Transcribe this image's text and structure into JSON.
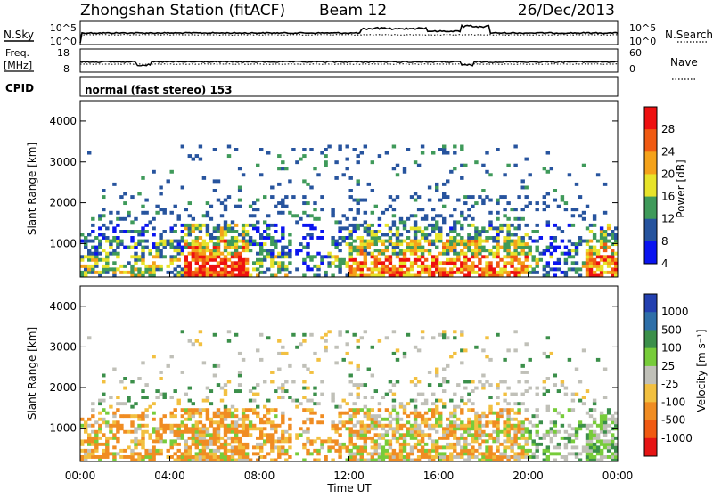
{
  "header": {
    "title": "Zhongshan Station (fitACF)",
    "beam": "Beam 12",
    "date": "26/Dec/2013"
  },
  "strip_panels": {
    "nsky_label": "N.Sky",
    "nsky_ticks": [
      "10^5",
      "10^0"
    ],
    "nsearch_label": "N.Search",
    "nsearch_ticks": [
      "10^5",
      "10^0"
    ],
    "freq_label_1": "Freq.",
    "freq_label_2": "[MHz]",
    "freq_ticks": [
      "18",
      "8"
    ],
    "nave_label": "Nave",
    "nave_ticks": [
      "60",
      "0"
    ],
    "cpid_label": "CPID",
    "cpid_value": "normal (fast stereo) 153"
  },
  "chart_data": [
    {
      "type": "heatmap",
      "panel": "power",
      "ylabel": "Slant Range [km]",
      "xlabel": "",
      "x_range_hours": [
        0,
        24
      ],
      "ylim": [
        180,
        4500
      ],
      "yticks": [
        "1000",
        "2000",
        "3000",
        "4000"
      ],
      "colorbar": {
        "label": "Power [dB]",
        "ticks": [
          "28",
          "24",
          "20",
          "16",
          "12",
          "8",
          "4"
        ],
        "colors": [
          "#ee1010",
          "#f05a12",
          "#f4a21a",
          "#e7e32a",
          "#3f9a5a",
          "#27549e",
          "#0a14f0"
        ]
      },
      "echo_regions": [
        {
          "from_h": 0.2,
          "to_h": 24,
          "range_km": [
            200,
            1500
          ],
          "level": "medium-high"
        },
        {
          "from_h": 1.0,
          "to_h": 23,
          "range_km": [
            1500,
            3400
          ],
          "level": "low"
        }
      ]
    },
    {
      "type": "heatmap",
      "panel": "velocity",
      "ylabel": "Slant Range [km]",
      "xlabel": "Time UT",
      "x_range_hours": [
        0,
        24
      ],
      "xticks": [
        "00:00",
        "04:00",
        "08:00",
        "12:00",
        "16:00",
        "20:00",
        "00:00"
      ],
      "ylim": [
        180,
        4500
      ],
      "yticks": [
        "1000",
        "2000",
        "3000",
        "4000"
      ],
      "colorbar": {
        "label": "Velocity [m s⁻¹]",
        "ticks": [
          "1000",
          "500",
          "100",
          "25",
          "-25",
          "-100",
          "-500",
          "-1000"
        ],
        "colors": [
          "#2340b0",
          "#2e6fa8",
          "#3b8f4a",
          "#77cc3a",
          "#c0c0b8",
          "#f2c040",
          "#f08c22",
          "#f05a12",
          "#e61414"
        ]
      },
      "echo_regions": [
        {
          "from_h": 0.2,
          "to_h": 24,
          "range_km": [
            200,
            1500
          ],
          "level": "mostly negative"
        },
        {
          "from_h": 1.0,
          "to_h": 23,
          "range_km": [
            1500,
            3400
          ],
          "level": "mixed"
        }
      ]
    }
  ]
}
